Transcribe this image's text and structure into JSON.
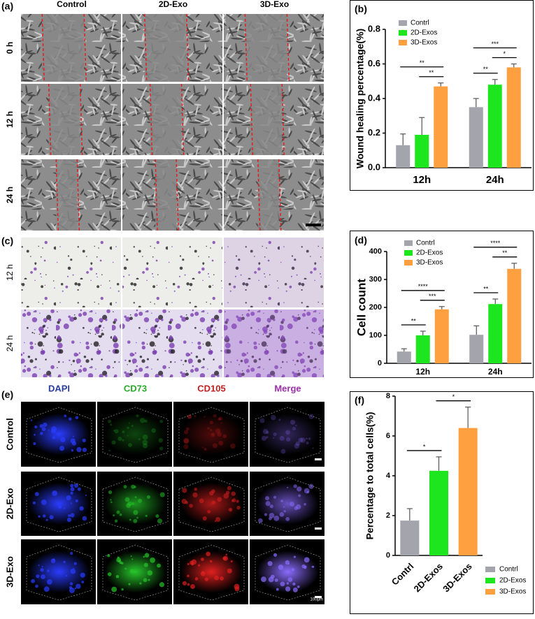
{
  "panel_labels": [
    "(a)",
    "(b)",
    "(c)",
    "(d)",
    "(e)",
    "(f)"
  ],
  "wound_images": {
    "columns": [
      "Control",
      "2D-Exo",
      "3D-Exo"
    ],
    "rows": [
      "0 h",
      "12 h",
      "24 h"
    ]
  },
  "transwell_images": {
    "rows": [
      "12 h",
      "24 h"
    ]
  },
  "fluorescence_images": {
    "columns": [
      "DAPI",
      "CD73",
      "CD105",
      "Merge"
    ],
    "rows": [
      "Control",
      "2D-Exo",
      "3D-Exo"
    ],
    "scale_bar": "100μm"
  },
  "chart_data": [
    {
      "type": "bar",
      "ylabel": "Wound healing percentage(%)",
      "categories": [
        "12h",
        "24h"
      ],
      "series": [
        {
          "name": "Contrl",
          "color": "#a4a4ac",
          "values": [
            0.13,
            0.35
          ],
          "errors": [
            0.065,
            0.05
          ]
        },
        {
          "name": "2D-Exos",
          "color": "#1ee61e",
          "values": [
            0.19,
            0.48
          ],
          "errors": [
            0.1,
            0.03
          ]
        },
        {
          "name": "3D-Exos",
          "color": "#ffa040",
          "values": [
            0.47,
            0.58
          ],
          "errors": [
            0.02,
            0.02
          ]
        }
      ],
      "ylim": [
        0,
        0.8
      ],
      "yticks": [
        {
          "value": 0,
          "label": "0.0"
        },
        0.2,
        0.4,
        0.6,
        0.8
      ],
      "legend": "upper-left",
      "annotations": [
        {
          "text": "**",
          "category": 0,
          "pair": [
            1,
            2
          ]
        },
        {
          "text": "**",
          "category": 0,
          "pair": [
            0,
            2
          ]
        },
        {
          "text": "**",
          "category": 1,
          "pair": [
            0,
            1
          ]
        },
        {
          "text": "*",
          "category": 1,
          "pair": [
            1,
            2
          ]
        },
        {
          "text": "***",
          "category": 1,
          "pair": [
            0,
            2
          ]
        }
      ]
    },
    {
      "type": "bar",
      "ylabel": "Cell count",
      "categories": [
        "12h",
        "24h"
      ],
      "series": [
        {
          "name": "Contrl",
          "color": "#a4a4ac",
          "values": [
            42,
            102
          ],
          "errors": [
            10,
            32
          ]
        },
        {
          "name": "2D-Exos",
          "color": "#1ee61e",
          "values": [
            100,
            212
          ],
          "errors": [
            15,
            18
          ]
        },
        {
          "name": "3D-Exos",
          "color": "#ffa040",
          "values": [
            193,
            338
          ],
          "errors": [
            10,
            20
          ]
        }
      ],
      "ylim": [
        0,
        400
      ],
      "yticks": [
        0,
        100,
        200,
        300,
        400
      ],
      "legend": "upper-left",
      "annotations": [
        {
          "text": "**",
          "category": 0,
          "pair": [
            0,
            1
          ]
        },
        {
          "text": "***",
          "category": 0,
          "pair": [
            1,
            2
          ]
        },
        {
          "text": "****",
          "category": 0,
          "pair": [
            0,
            2
          ]
        },
        {
          "text": "**",
          "category": 1,
          "pair": [
            0,
            1
          ]
        },
        {
          "text": "**",
          "category": 1,
          "pair": [
            1,
            2
          ]
        },
        {
          "text": "****",
          "category": 1,
          "pair": [
            0,
            2
          ]
        }
      ]
    },
    {
      "type": "bar",
      "ylabel": "Percentage to total cells(%)",
      "categories": [
        "Contrl",
        "2D-Exos",
        "3D-Exos"
      ],
      "values": [
        1.75,
        4.25,
        6.4
      ],
      "errors": [
        0.6,
        0.7,
        1.05
      ],
      "colors": [
        "#a4a4ac",
        "#1ee61e",
        "#ffa040"
      ],
      "ylim": [
        0,
        8
      ],
      "yticks": [
        0,
        2,
        4,
        6,
        8
      ],
      "legend": "lower-right",
      "annotations": [
        {
          "text": "*",
          "pair": [
            0,
            1
          ]
        },
        {
          "text": "*",
          "pair": [
            1,
            2
          ]
        }
      ]
    }
  ]
}
